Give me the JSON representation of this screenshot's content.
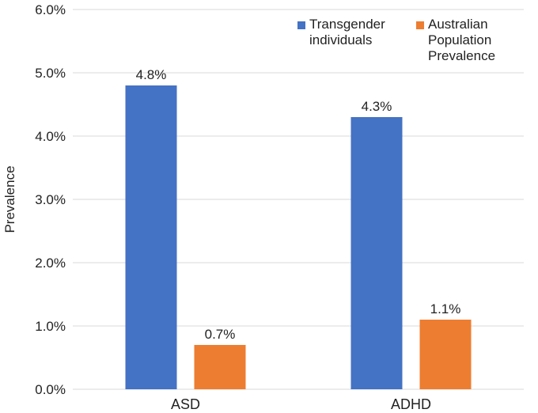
{
  "chart_data": {
    "type": "bar",
    "categories": [
      "ASD",
      "ADHD"
    ],
    "series": [
      {
        "name": "Transgender individuals",
        "legend_lines": [
          "Transgender",
          "individuals"
        ],
        "values": [
          4.8,
          4.3
        ],
        "labels": [
          "4.8%",
          "4.3%"
        ],
        "color": "#4472C4"
      },
      {
        "name": "Australian Population Prevalence",
        "legend_lines": [
          "Australian",
          "Population",
          "Prevalence"
        ],
        "values": [
          0.7,
          1.1
        ],
        "labels": [
          "0.7%",
          "1.1%"
        ],
        "color": "#ED7D31"
      }
    ],
    "ylabel": "Prevalence",
    "ylim": [
      0,
      6
    ],
    "yticks": [
      0,
      1,
      2,
      3,
      4,
      5,
      6
    ],
    "ytick_labels": [
      "0.0%",
      "1.0%",
      "2.0%",
      "3.0%",
      "4.0%",
      "5.0%",
      "6.0%"
    ],
    "grid": true,
    "legend_position": "top-right"
  }
}
